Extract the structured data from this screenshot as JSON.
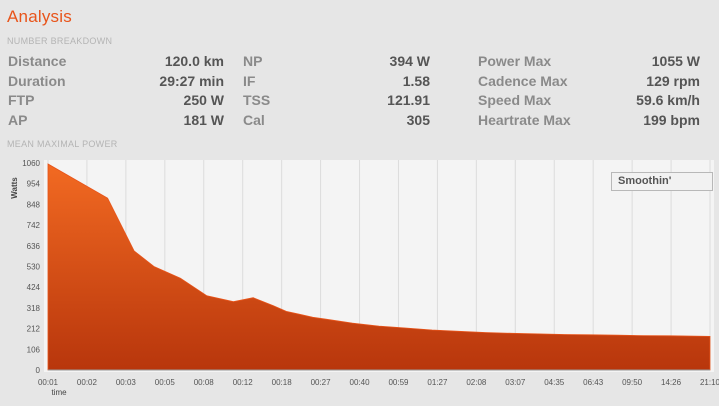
{
  "app": {
    "title": "Analysis"
  },
  "sections": {
    "breakdown": "NUMBER BREAKDOWN",
    "mmp": "MEAN MAXIMAL POWER"
  },
  "stats": {
    "col1": [
      {
        "label": "Distance",
        "value": "120.0 km"
      },
      {
        "label": "Duration",
        "value": "29:27 min"
      },
      {
        "label": "FTP",
        "value": "250 W"
      },
      {
        "label": "AP",
        "value": "181 W"
      }
    ],
    "col2": [
      {
        "label": "NP",
        "value": "394 W"
      },
      {
        "label": "IF",
        "value": "1.58"
      },
      {
        "label": "TSS",
        "value": "121.91"
      },
      {
        "label": "Cal",
        "value": "305"
      }
    ],
    "col3": [
      {
        "label": "Power Max",
        "value": "1055 W"
      },
      {
        "label": "Cadence Max",
        "value": "129 rpm"
      },
      {
        "label": "Speed Max",
        "value": "59.6 km/h"
      },
      {
        "label": "Heartrate Max",
        "value": "199 bpm"
      }
    ]
  },
  "controls": {
    "smoothing_label": "Smoothin'"
  },
  "colors": {
    "accent": "#e8541a",
    "fill_top": "#f26a22",
    "fill_bottom": "#b8360c"
  },
  "chart_data": {
    "type": "area",
    "ylabel": "Watts",
    "xlabel": "time",
    "ylim": [
      0,
      1060
    ],
    "yticks": [
      0,
      106,
      212,
      318,
      424,
      530,
      636,
      742,
      848,
      954,
      1060
    ],
    "xticks": [
      "00:01",
      "00:02",
      "00:03",
      "00:05",
      "00:08",
      "00:12",
      "00:18",
      "00:27",
      "00:40",
      "00:59",
      "01:27",
      "02:08",
      "03:07",
      "04:35",
      "06:43",
      "09:50",
      "14:26",
      "21:10"
    ],
    "x": [
      0,
      0.09,
      0.13,
      0.16,
      0.2,
      0.24,
      0.28,
      0.31,
      0.34,
      0.36,
      0.38,
      0.4,
      0.42,
      0.44,
      0.46,
      0.48,
      0.5,
      0.54,
      0.58,
      0.62,
      0.66,
      0.7,
      0.74,
      0.78,
      0.82,
      0.86,
      0.9,
      0.94,
      1.0
    ],
    "values": [
      1055,
      880,
      610,
      530,
      470,
      380,
      350,
      370,
      330,
      300,
      285,
      270,
      260,
      250,
      240,
      232,
      225,
      215,
      205,
      198,
      192,
      188,
      185,
      182,
      180,
      178,
      176,
      175,
      172
    ]
  }
}
